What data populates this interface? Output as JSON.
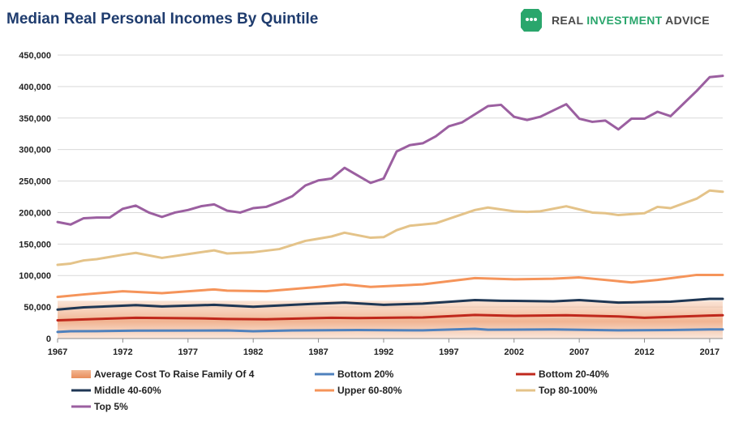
{
  "header": {
    "title": "Median Real Personal Incomes By Quintile",
    "brand_part1": "REAL ",
    "brand_part2": "INVESTMENT",
    "brand_part3": " ADVICE",
    "brand_icon": "piggy-bank-icon",
    "brand_color": "#2aa66c",
    "brand_dark": "#4a4a4a"
  },
  "chart_data": {
    "type": "line",
    "title": "Median Real Personal Incomes By Quintile",
    "xlabel": "",
    "ylabel": "",
    "xlim": [
      1967,
      2018
    ],
    "ylim": [
      0,
      450000
    ],
    "yticks": [
      0,
      50000,
      100000,
      150000,
      200000,
      250000,
      300000,
      350000,
      400000,
      450000
    ],
    "ytick_labels": [
      "0",
      "50,000",
      "100,000",
      "150,000",
      "200,000",
      "250,000",
      "300,000",
      "350,000",
      "400,000",
      "450,000"
    ],
    "xticks": [
      1967,
      1972,
      1977,
      1982,
      1987,
      1992,
      1997,
      2002,
      2007,
      2012,
      2017
    ],
    "xtick_labels": [
      "1967",
      "1972",
      "1977",
      "1982",
      "1987",
      "1992",
      "1997",
      "2002",
      "2007",
      "2012",
      "2017"
    ],
    "grid": "horizontal",
    "legend_position": "bottom",
    "area": {
      "name": "Average Cost To Raise Family Of 4",
      "x": [
        1967,
        2018
      ],
      "values": [
        60000,
        60000
      ],
      "color": "#ec9b6d"
    },
    "series": [
      {
        "name": "Bottom 20%",
        "color": "#4f81bd",
        "x": [
          1967,
          1968,
          1970,
          1973,
          1980,
          1982,
          1985,
          1990,
          1995,
          1999,
          2000,
          2005,
          2010,
          2014,
          2017,
          2018
        ],
        "values": [
          10500,
          11500,
          11800,
          12500,
          12800,
          11500,
          12800,
          13500,
          13000,
          15500,
          14000,
          14500,
          13000,
          13500,
          14500,
          14500
        ]
      },
      {
        "name": "Bottom 20-40%",
        "color": "#c0281c",
        "x": [
          1967,
          1970,
          1973,
          1978,
          1980,
          1983,
          1988,
          1990,
          1995,
          1999,
          2002,
          2006,
          2010,
          2012,
          2017,
          2018
        ],
        "values": [
          29000,
          31000,
          33000,
          32000,
          31000,
          30500,
          33000,
          32500,
          33500,
          37500,
          36000,
          37000,
          35000,
          33000,
          36500,
          37000
        ]
      },
      {
        "name": "Middle 40-60%",
        "color": "#1f3754",
        "x": [
          1967,
          1969,
          1973,
          1975,
          1979,
          1982,
          1986,
          1989,
          1992,
          1995,
          1999,
          2001,
          2005,
          2007,
          2010,
          2014,
          2017,
          2018
        ],
        "values": [
          46000,
          49500,
          53000,
          51000,
          53500,
          50500,
          54500,
          57000,
          53500,
          55500,
          61000,
          60000,
          59000,
          61000,
          57000,
          58500,
          63000,
          63000
        ]
      },
      {
        "name": "Upper 60-80%",
        "color": "#f5945a",
        "x": [
          1967,
          1969,
          1972,
          1975,
          1979,
          1980,
          1983,
          1987,
          1989,
          1991,
          1995,
          1999,
          2002,
          2005,
          2007,
          2011,
          2013,
          2016,
          2018
        ],
        "values": [
          66000,
          70000,
          75000,
          72000,
          78000,
          76000,
          75000,
          82000,
          86000,
          82000,
          86000,
          96000,
          94000,
          95000,
          97000,
          89000,
          93000,
          101000,
          101000
        ]
      },
      {
        "name": "Top 80-100%",
        "color": "#e4c389",
        "x": [
          1967,
          1968,
          1969,
          1970,
          1972,
          1973,
          1975,
          1977,
          1979,
          1980,
          1982,
          1984,
          1986,
          1988,
          1989,
          1991,
          1992,
          1993,
          1994,
          1996,
          1997,
          1999,
          2000,
          2002,
          2003,
          2004,
          2006,
          2008,
          2009,
          2010,
          2012,
          2013,
          2014,
          2016,
          2017,
          2018
        ],
        "values": [
          117000,
          119000,
          124000,
          126000,
          133000,
          136000,
          128000,
          134000,
          140000,
          135000,
          137000,
          142000,
          155000,
          162000,
          168000,
          160000,
          161000,
          172000,
          179000,
          183000,
          190000,
          204000,
          208000,
          202000,
          201000,
          202000,
          210000,
          200000,
          199000,
          196000,
          199000,
          209000,
          207000,
          222000,
          235000,
          233000
        ]
      },
      {
        "name": "Top 5%",
        "color": "#9b5fa0",
        "x": [
          1967,
          1968,
          1969,
          1970,
          1971,
          1972,
          1973,
          1974,
          1975,
          1976,
          1977,
          1978,
          1979,
          1980,
          1981,
          1982,
          1983,
          1984,
          1985,
          1986,
          1987,
          1988,
          1989,
          1990,
          1991,
          1992,
          1993,
          1994,
          1995,
          1996,
          1997,
          1998,
          1999,
          2000,
          2001,
          2002,
          2003,
          2004,
          2005,
          2006,
          2007,
          2008,
          2009,
          2010,
          2011,
          2012,
          2013,
          2014,
          2015,
          2016,
          2017,
          2018
        ],
        "values": [
          185000,
          181000,
          191000,
          192000,
          192000,
          206000,
          211000,
          200000,
          193000,
          200000,
          204000,
          210000,
          213000,
          203000,
          200000,
          207000,
          209000,
          217000,
          226000,
          243000,
          251000,
          254000,
          271000,
          259000,
          247000,
          254000,
          297000,
          307000,
          310000,
          321000,
          337000,
          343000,
          356000,
          369000,
          371000,
          352000,
          347000,
          352000,
          362000,
          372000,
          349000,
          344000,
          346000,
          332000,
          349000,
          349000,
          360000,
          353000,
          373000,
          393000,
          415000,
          417000
        ]
      }
    ]
  }
}
